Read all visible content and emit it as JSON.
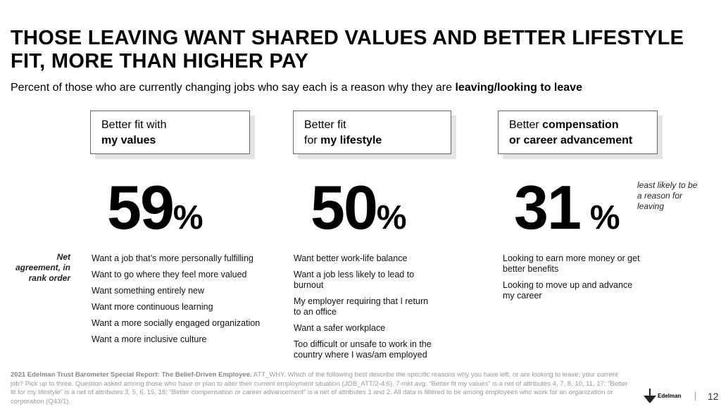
{
  "title": "THOSE LEAVING WANT SHARED VALUES AND BETTER LIFESTYLE FIT, MORE THAN HIGHER PAY",
  "subtitle": {
    "text": "Percent of those who are currently changing jobs who say each is a reason why they are ",
    "bold": "leaving/looking to leave"
  },
  "rank_note": "Net agreement, in rank order",
  "least_note": "least likely to be a reason for leaving",
  "columns": [
    {
      "label_regular": "Better fit with",
      "label_bold": "my values",
      "value": "59",
      "unit": "%",
      "items": [
        "Want a job that’s more personally fulfilling",
        "Want to go where they feel more valued",
        "Want something entirely new",
        "Want more continuous learning",
        "Want a more socially engaged organization",
        "Want a more inclusive culture"
      ]
    },
    {
      "label_regular": "Better fit",
      "label_prefix": "for ",
      "label_bold": "my lifestyle",
      "value": "50",
      "unit": "%",
      "items": [
        "Want better work-life balance",
        "Want a job less likely to lead to burnout",
        "My employer requiring that I return to an office",
        "Want a safer workplace",
        "Too difficult or unsafe to work in the country where I was/am employed"
      ]
    },
    {
      "label_regular": "Better ",
      "label_bold": "compensation",
      "label_bold2": "or career advancement",
      "value": "31",
      "unit": "%",
      "items": [
        "Looking to earn more money or get better benefits",
        "Looking to move up and advance my career"
      ]
    }
  ],
  "footnote": {
    "bold": "2021 Edelman Trust Barometer Special Report: The Belief-Driven Employee.",
    "text": " ATT_WHY. Which of the following best describe the specific reasons why you have left, or are looking to leave, your current job? Pick up to three. Question asked among those who have or plan to alter their current employment situation (JOB_ATT/2-4:6). 7-mkt avg. “Better fit my values” is a net of attributes 4, 7, 8, 10, 11, 17; “Better fit for my lifestyle” is a net of attributes 3, 5, 6, 15, 18; “Better compensation or career advancement” is a net of attributes 1 and 2. All data is filtered to be among employees who work for an organization or corporation (Q43/1)."
  },
  "logo": "Edelman",
  "page_number": "12"
}
